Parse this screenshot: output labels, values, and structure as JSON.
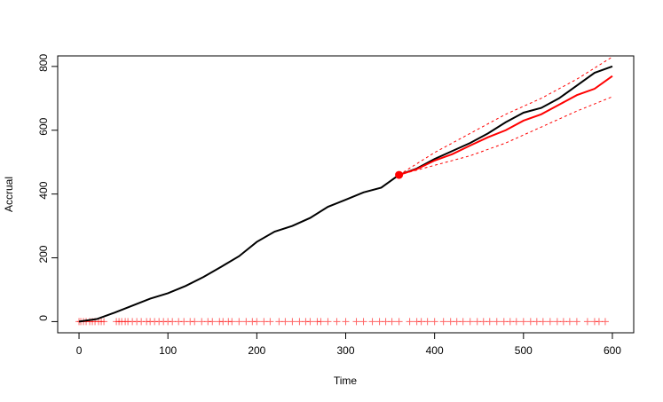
{
  "chart_data": {
    "type": "line",
    "xlabel": "Time",
    "ylabel": "Accrual",
    "xlim": [
      -24,
      624
    ],
    "ylim": [
      -35,
      833
    ],
    "xticks": [
      0,
      100,
      200,
      300,
      400,
      500,
      600
    ],
    "yticks": [
      0,
      200,
      400,
      600,
      800
    ],
    "series": [
      {
        "color": "#000000",
        "dash": false,
        "width": 2,
        "x": [
          0,
          20,
          40,
          60,
          80,
          100,
          120,
          140,
          160,
          180,
          200,
          220,
          240,
          260,
          280,
          300,
          320,
          340,
          360,
          380,
          400,
          420,
          440,
          460,
          480,
          500,
          520,
          540,
          560,
          580,
          600
        ],
        "values": [
          0,
          8,
          28,
          50,
          72,
          89,
          112,
          140,
          172,
          205,
          250,
          282,
          300,
          325,
          360,
          382,
          405,
          420,
          460,
          480,
          510,
          535,
          560,
          590,
          625,
          655,
          670,
          700,
          740,
          780,
          800
        ]
      },
      {
        "color": "#ff0000",
        "dash": false,
        "width": 2,
        "x": [
          360,
          380,
          400,
          420,
          440,
          460,
          480,
          500,
          520,
          540,
          560,
          580,
          600
        ],
        "values": [
          460,
          478,
          505,
          525,
          552,
          578,
          600,
          630,
          650,
          680,
          710,
          730,
          770
        ]
      },
      {
        "color": "#ff0000",
        "dash": true,
        "width": 1,
        "x": [
          360,
          400,
          440,
          480,
          520,
          560,
          600
        ],
        "values": [
          460,
          530,
          590,
          650,
          700,
          760,
          830
        ]
      },
      {
        "color": "#ff0000",
        "dash": true,
        "width": 1,
        "x": [
          360,
          400,
          440,
          480,
          520,
          560,
          600
        ],
        "values": [
          460,
          490,
          520,
          560,
          610,
          660,
          705
        ]
      }
    ],
    "point": {
      "x": 360,
      "y": 460,
      "color": "#ff0000"
    },
    "rug": {
      "color": "#ff0000",
      "x": [
        0,
        2,
        5,
        8,
        12,
        15,
        18,
        22,
        25,
        28,
        42,
        45,
        48,
        52,
        55,
        60,
        65,
        70,
        76,
        80,
        85,
        90,
        95,
        100,
        105,
        112,
        118,
        125,
        130,
        138,
        145,
        150,
        158,
        162,
        168,
        172,
        180,
        188,
        195,
        200,
        208,
        215,
        225,
        232,
        240,
        248,
        255,
        260,
        268,
        272,
        280,
        290,
        300,
        312,
        320,
        330,
        338,
        345,
        352,
        360,
        372,
        380,
        385,
        392,
        400,
        410,
        418,
        425,
        432,
        440,
        448,
        455,
        462,
        470,
        478,
        485,
        492,
        500,
        508,
        515,
        522,
        530,
        538,
        545,
        552,
        560,
        572,
        580,
        585,
        592
      ],
      "values": [
        0,
        0,
        0,
        0,
        0,
        0,
        0,
        0,
        0,
        0,
        0,
        0,
        0,
        0,
        0,
        0,
        0,
        0,
        0,
        0,
        0,
        0,
        0,
        0,
        0,
        0,
        0,
        0,
        0,
        0,
        0,
        0,
        0,
        0,
        0,
        0,
        0,
        0,
        0,
        0,
        0,
        0,
        0,
        0,
        0,
        0,
        0,
        0,
        0,
        0,
        0,
        0,
        0,
        0,
        0,
        0,
        0,
        0,
        0,
        0,
        0,
        0,
        0,
        0,
        0,
        0,
        0,
        0,
        0,
        0,
        0,
        0,
        0,
        0,
        0,
        0,
        0,
        0,
        0,
        0,
        0,
        0,
        0,
        0,
        0,
        0,
        0,
        0,
        0,
        0
      ]
    }
  }
}
